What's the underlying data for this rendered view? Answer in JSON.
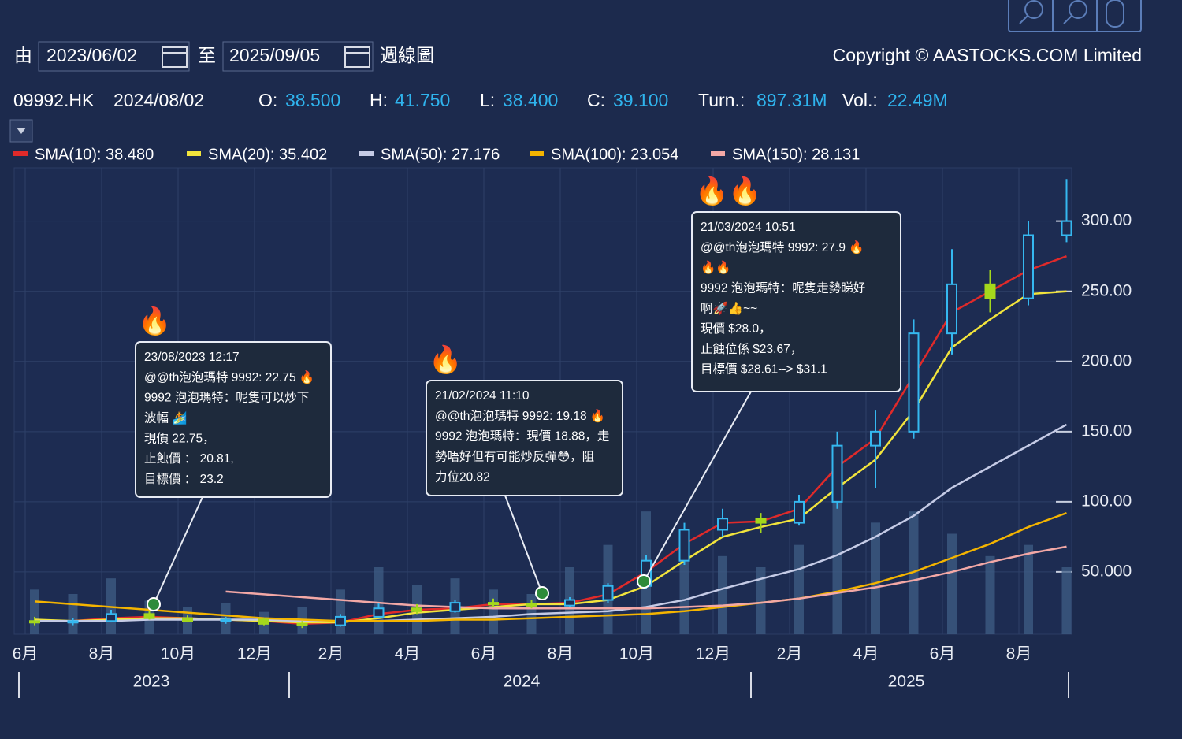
{
  "header": {
    "from_label": "由",
    "from_date": "2023/06/02",
    "to_label": "至",
    "to_date": "2025/09/05",
    "period": "週線圖",
    "copyright": "Copyright © AASTOCKS.COM Limited",
    "symbol": "09992.HK",
    "date": "2024/08/02",
    "quote": [
      {
        "label": "O:",
        "value": "38.500"
      },
      {
        "label": "H:",
        "value": "41.750"
      },
      {
        "label": "L:",
        "value": "38.400"
      },
      {
        "label": "C:",
        "value": "39.100"
      },
      {
        "label": "Turn.:",
        "value": "897.31M"
      },
      {
        "label": "Vol.:",
        "value": "22.49M"
      }
    ]
  },
  "chart_data": {
    "type": "candlestick",
    "x": [
      "2023-06",
      "2023-07",
      "2023-08",
      "2023-09",
      "2023-10",
      "2023-11",
      "2023-12",
      "2024-01",
      "2024-02",
      "2024-03",
      "2024-04",
      "2024-05",
      "2024-06",
      "2024-07",
      "2024-08",
      "2024-09",
      "2024-10",
      "2024-11",
      "2024-12",
      "2025-01",
      "2025-02",
      "2025-03",
      "2025-04",
      "2025-05",
      "2025-06",
      "2025-07",
      "2025-08",
      "2025-09"
    ],
    "open": [
      15,
      14,
      15,
      20,
      17,
      15,
      16,
      13,
      12,
      18,
      24,
      22,
      28,
      27,
      26,
      30,
      40,
      58,
      80,
      88,
      85,
      100,
      140,
      150,
      220,
      255,
      245,
      290
    ],
    "high": [
      18,
      17,
      23,
      22,
      19,
      18,
      17,
      15,
      20,
      28,
      27,
      30,
      31,
      30,
      32,
      42,
      62,
      85,
      95,
      92,
      105,
      150,
      165,
      230,
      280,
      265,
      300,
      330
    ],
    "low": [
      12,
      12,
      14,
      16,
      14,
      13,
      12,
      10,
      11,
      17,
      20,
      21,
      25,
      24,
      25,
      28,
      38,
      55,
      75,
      78,
      83,
      95,
      110,
      145,
      205,
      235,
      240,
      285
    ],
    "close": [
      14,
      15,
      20,
      17,
      15,
      16,
      13,
      12,
      18,
      24,
      22,
      28,
      27,
      26,
      30,
      40,
      58,
      80,
      88,
      85,
      100,
      140,
      150,
      220,
      255,
      245,
      290,
      300
    ],
    "volume": [
      20,
      18,
      25,
      15,
      12,
      14,
      10,
      12,
      20,
      30,
      22,
      25,
      20,
      18,
      30,
      40,
      55,
      45,
      35,
      30,
      40,
      60,
      50,
      55,
      45,
      35,
      40,
      30
    ],
    "up_color": "#35b8f0",
    "down_color": "#a4d81c",
    "volume_color": "#3f5d86",
    "series": [
      {
        "name": "SMA(10): 38.480",
        "color": "#e02a2a",
        "values": [
          15,
          15,
          17,
          18,
          17,
          16,
          15,
          13,
          14,
          20,
          23,
          24,
          27,
          27,
          28,
          34,
          50,
          70,
          85,
          86,
          95,
          125,
          145,
          190,
          235,
          250,
          265,
          275
        ]
      },
      {
        "name": "SMA(20): 35.402",
        "color": "#f2e43c",
        "values": [
          16,
          15,
          16,
          17,
          17,
          16,
          15,
          14,
          14,
          17,
          21,
          23,
          25,
          27,
          27,
          30,
          40,
          58,
          75,
          82,
          88,
          110,
          130,
          165,
          210,
          230,
          248,
          250
        ]
      },
      {
        "name": "SMA(50): 27.176",
        "color": "#c5cbe6",
        "values": [
          15,
          15,
          15,
          16,
          16,
          16,
          16,
          15,
          15,
          15,
          16,
          17,
          18,
          20,
          21,
          22,
          25,
          30,
          38,
          45,
          52,
          62,
          75,
          90,
          110,
          125,
          140,
          155
        ]
      },
      {
        "name": "SMA(100): 23.054",
        "color": "#f4b400",
        "values": [
          29,
          27,
          25,
          23,
          21,
          19,
          17,
          16,
          15,
          15,
          15,
          16,
          16,
          17,
          18,
          19,
          20,
          22,
          25,
          28,
          31,
          36,
          42,
          50,
          60,
          70,
          82,
          92
        ]
      },
      {
        "name": "SMA(150): 28.131",
        "color": "#f3a8a6",
        "values": [
          null,
          null,
          null,
          null,
          null,
          36,
          34,
          32,
          30,
          28,
          26,
          25,
          24,
          24,
          24,
          24,
          24,
          25,
          26,
          28,
          31,
          35,
          39,
          44,
          50,
          57,
          63,
          68
        ]
      }
    ],
    "ylim": [
      5.6,
      338
    ],
    "yticks": [
      {
        "value": 50,
        "label": "50.000"
      },
      {
        "value": 100,
        "label": "100.00"
      },
      {
        "value": 150,
        "label": "150.00"
      },
      {
        "value": 200,
        "label": "200.00"
      },
      {
        "value": 250,
        "label": "250.00"
      },
      {
        "value": 300,
        "label": "300.00"
      }
    ],
    "xticks": [
      {
        "value": "2023-06",
        "label": "6月"
      },
      {
        "value": "2023-08",
        "label": "8月"
      },
      {
        "value": "2023-10",
        "label": "10月"
      },
      {
        "value": "2023-12",
        "label": "12月"
      },
      {
        "value": "2024-02",
        "label": "2月"
      },
      {
        "value": "2024-04",
        "label": "4月"
      },
      {
        "value": "2024-06",
        "label": "6月"
      },
      {
        "value": "2024-08",
        "label": "8月"
      },
      {
        "value": "2024-10",
        "label": "10月"
      },
      {
        "value": "2024-12",
        "label": "12月"
      },
      {
        "value": "2025-02",
        "label": "2月"
      },
      {
        "value": "2025-04",
        "label": "4月"
      },
      {
        "value": "2025-06",
        "label": "6月"
      },
      {
        "value": "2025-08",
        "label": "8月"
      }
    ],
    "x_group_labels": [
      "2023",
      "2024",
      "2025"
    ],
    "grid": true,
    "annotations": [
      {
        "icon": "🔥",
        "lines": [
          "23/08/2023 12:17",
          "@@th泡泡瑪特 9992: 22.75 🔥",
          "9992 泡泡瑪特：呢隻可以炒下",
          "波幅 🏄",
          "現價 22.75，",
          "止蝕價 ： 20.81,",
          "目標價 ： 23.2"
        ]
      },
      {
        "icon": "🔥",
        "lines": [
          "21/02/2024 11:10",
          "@@th泡泡瑪特 9992: 19.18 🔥",
          "9992 泡泡瑪特：現價 18.88，走",
          "勢唔好但有可能炒反彈😳，阻",
          "力位20.82"
        ]
      },
      {
        "icon": "🔥🔥",
        "lines": [
          "21/03/2024 10:51",
          "@@th泡泡瑪特 9992: 27.9 🔥",
          "🔥🔥",
          "9992 泡泡瑪特：呢隻走勢睇好",
          "啊🚀👍~~",
          "現價 $28.0，",
          "止蝕位係 $23.67，",
          "目標價 $28.61--> $31.1"
        ]
      }
    ]
  }
}
